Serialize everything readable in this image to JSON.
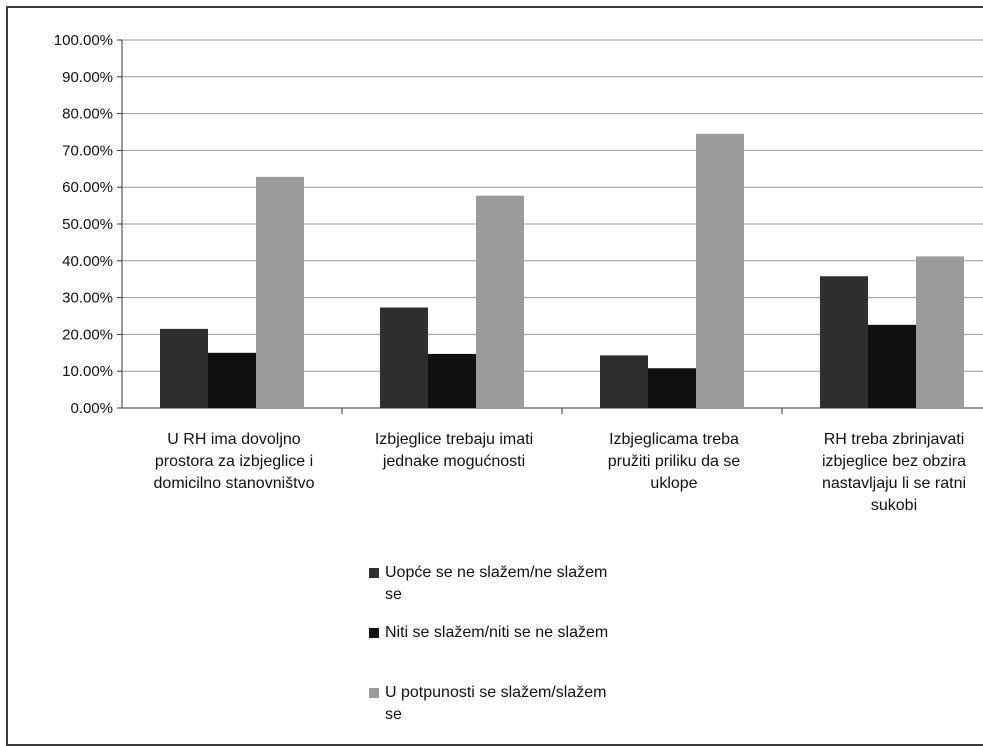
{
  "chart_data": {
    "type": "bar",
    "categories": [
      [
        "U RH ima dovoljno",
        "prostora za izbjeglice i",
        "domicilno stanovništvo"
      ],
      [
        "Izbjeglice trebaju imati",
        "jednake mogućnosti"
      ],
      [
        "Izbjeglicama treba",
        "pružiti priliku da se",
        "uklope"
      ],
      [
        "RH treba zbrinjavati",
        "izbjeglice bez obzira",
        "nastavljaju li se ratni",
        "sukobi"
      ]
    ],
    "series": [
      {
        "name": "Uopće se ne slažem/ne slažem se",
        "color": "#2e2e2e",
        "values": [
          21.5,
          27.3,
          14.3,
          35.8
        ]
      },
      {
        "name": "Niti se slažem/niti se ne slažem",
        "color": "#0f0f0f",
        "values": [
          15.0,
          14.7,
          10.8,
          22.6
        ]
      },
      {
        "name": "U potpunosti se slažem/slažem se",
        "color": "#9b9b9b",
        "values": [
          62.8,
          57.7,
          74.5,
          41.2
        ]
      }
    ],
    "yticks": [
      "0.00%",
      "10.00%",
      "20.00%",
      "30.00%",
      "40.00%",
      "50.00%",
      "60.00%",
      "70.00%",
      "80.00%",
      "90.00%",
      "100.00%"
    ],
    "ylim": [
      0,
      100
    ],
    "grid": true,
    "legend_position": "bottom"
  },
  "legend": {
    "items": [
      {
        "lines": [
          "Uopće se ne slažem/ne slažem",
          "se"
        ],
        "color": "#2e2e2e"
      },
      {
        "lines": [
          "Niti se slažem/niti se ne slažem"
        ],
        "color": "#0f0f0f"
      },
      {
        "lines": [
          "U potpunosti se slažem/slažem",
          "se"
        ],
        "color": "#9b9b9b"
      }
    ]
  }
}
